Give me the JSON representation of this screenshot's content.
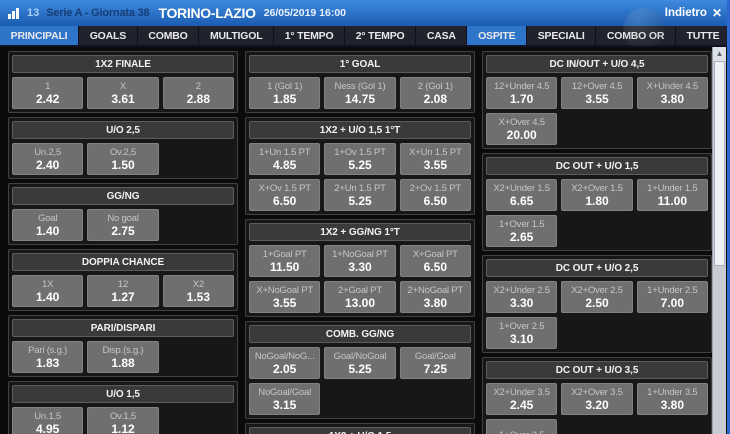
{
  "header": {
    "match_number": "13",
    "competition": "Serie A - Giornata 38",
    "match_title": "TORINO-LAZIO",
    "datetime": "26/05/2019 16:00",
    "back_label": "Indietro"
  },
  "icons": {
    "bar_chart": "bar-chart",
    "close": "✕",
    "scroll_up": "▲"
  },
  "colors": {
    "accent_blue": "#2e74c8",
    "titlebar_top": "#3f8ade",
    "titlebar_bottom": "#1a5cb0",
    "tabbar_bg": "#161b2e",
    "panel_bg": "#171717",
    "section_header_bg": "#3a3a3a",
    "odds_button_bg": "#6f6f6f",
    "odds_value_color": "#ffffff"
  },
  "tabs": [
    {
      "label": "PRINCIPALI",
      "active": true
    },
    {
      "label": "GOALS",
      "active": false
    },
    {
      "label": "COMBO",
      "active": false
    },
    {
      "label": "MULTIGOL",
      "active": false
    },
    {
      "label": "1° TEMPO",
      "active": false
    },
    {
      "label": "2° TEMPO",
      "active": false
    },
    {
      "label": "CASA",
      "active": false
    },
    {
      "label": "OSPITE",
      "active": true
    },
    {
      "label": "SPECIALI",
      "active": false
    },
    {
      "label": "COMBO OR",
      "active": false
    },
    {
      "label": "TUTTE",
      "active": false
    }
  ],
  "columns": [
    {
      "sections": [
        {
          "title": "1X2 FINALE",
          "odds": [
            {
              "label": "1",
              "value": "2.42"
            },
            {
              "label": "X",
              "value": "3.61"
            },
            {
              "label": "2",
              "value": "2.88"
            }
          ]
        },
        {
          "title": "U/O 2,5",
          "odds": [
            {
              "label": "Un.2,5",
              "value": "2.40"
            },
            {
              "label": "Ov.2,5",
              "value": "1.50"
            }
          ]
        },
        {
          "title": "GG/NG",
          "odds": [
            {
              "label": "Goal",
              "value": "1.40"
            },
            {
              "label": "No goal",
              "value": "2.75"
            }
          ]
        },
        {
          "title": "DOPPIA CHANCE",
          "odds": [
            {
              "label": "1X",
              "value": "1.40"
            },
            {
              "label": "12",
              "value": "1.27"
            },
            {
              "label": "X2",
              "value": "1.53"
            }
          ]
        },
        {
          "title": "PARI/DISPARI",
          "odds": [
            {
              "label": "Pari (s.g.)",
              "value": "1.83"
            },
            {
              "label": "Disp.(s.g.)",
              "value": "1.88"
            }
          ]
        },
        {
          "title": "U/O 1,5",
          "odds": [
            {
              "label": "Un.1,5",
              "value": "4.95"
            },
            {
              "label": "Ov.1,5",
              "value": "1.12"
            }
          ]
        }
      ]
    },
    {
      "sections": [
        {
          "title": "1° GOAL",
          "odds": [
            {
              "label": "1 (Gol 1)",
              "value": "1.85"
            },
            {
              "label": "Ness (Gol 1)",
              "value": "14.75"
            },
            {
              "label": "2 (Gol 1)",
              "value": "2.08"
            }
          ]
        },
        {
          "title": "1X2 + U/O 1,5 1°T",
          "odds": [
            {
              "label": "1+Un 1.5 PT",
              "value": "4.85"
            },
            {
              "label": "1+Ov 1.5 PT",
              "value": "5.25"
            },
            {
              "label": "X+Un 1.5 PT",
              "value": "3.55"
            },
            {
              "label": "X+Ov 1.5 PT",
              "value": "6.50"
            },
            {
              "label": "2+Un 1.5 PT",
              "value": "5.25"
            },
            {
              "label": "2+Ov 1.5 PT",
              "value": "6.50"
            }
          ]
        },
        {
          "title": "1X2 + GG/NG 1°T",
          "odds": [
            {
              "label": "1+Goal PT",
              "value": "11.50"
            },
            {
              "label": "1+NoGoal PT",
              "value": "3.30"
            },
            {
              "label": "X+Goal PT",
              "value": "6.50"
            },
            {
              "label": "X+NoGoal PT",
              "value": "3.55"
            },
            {
              "label": "2+Goal PT",
              "value": "13.00"
            },
            {
              "label": "2+NoGoal PT",
              "value": "3.80"
            }
          ]
        },
        {
          "title": "COMB. GG/NG",
          "odds": [
            {
              "label": "NoGoal/NoG...",
              "value": "2.05"
            },
            {
              "label": "Goal/NoGoal",
              "value": "5.25"
            },
            {
              "label": "Goal/Goal",
              "value": "7.25"
            },
            {
              "label": "NoGoal/Goal",
              "value": "3.15"
            }
          ]
        },
        {
          "title": "1X2 + U/O 1,5",
          "odds": []
        }
      ]
    },
    {
      "sections": [
        {
          "title": "DC IN/OUT + U/O 4,5",
          "odds": [
            {
              "label": "12+Under 4.5",
              "value": "1.70"
            },
            {
              "label": "12+Over 4.5",
              "value": "3.55"
            },
            {
              "label": "X+Under 4.5",
              "value": "3.80"
            },
            {
              "label": "X+Over 4.5",
              "value": "20.00"
            }
          ]
        },
        {
          "title": "DC OUT + U/O 1,5",
          "odds": [
            {
              "label": "X2+Under 1.5",
              "value": "6.65"
            },
            {
              "label": "X2+Over 1.5",
              "value": "1.80"
            },
            {
              "label": "1+Under 1.5",
              "value": "11.00"
            },
            {
              "label": "1+Over 1.5",
              "value": "2.65"
            }
          ]
        },
        {
          "title": "DC OUT + U/O 2,5",
          "odds": [
            {
              "label": "X2+Under 2.5",
              "value": "3.30"
            },
            {
              "label": "X2+Over 2.5",
              "value": "2.50"
            },
            {
              "label": "1+Under 2.5",
              "value": "7.00"
            },
            {
              "label": "1+Over 2.5",
              "value": "3.10"
            }
          ]
        },
        {
          "title": "DC OUT + U/O 3,5",
          "odds": [
            {
              "label": "X2+Under 3.5",
              "value": "2.45"
            },
            {
              "label": "X2+Over 3.5",
              "value": "3.20"
            },
            {
              "label": "1+Under 3.5",
              "value": "3.80"
            },
            {
              "label": "1+Over 3.5",
              "value": ""
            }
          ]
        }
      ]
    }
  ]
}
